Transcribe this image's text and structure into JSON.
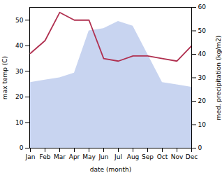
{
  "chart_data": {
    "type": "line",
    "xlabel": "date (month)",
    "ylabel": "max temp (C)",
    "y2label": "med. precipitation (kg/m2)",
    "categories": [
      "Jan",
      "Feb",
      "Mar",
      "Apr",
      "May",
      "Jun",
      "Jul",
      "Aug",
      "Sep",
      "Oct",
      "Nov",
      "Dec"
    ],
    "series": [
      {
        "type": "area",
        "axis": "y2",
        "color": "#c8d4f0",
        "values": [
          28,
          29,
          30,
          32,
          50,
          51,
          54,
          52,
          40,
          28,
          27,
          26
        ]
      },
      {
        "type": "line",
        "color": "#b03050",
        "values": [
          37,
          42,
          53,
          50,
          50,
          35,
          34,
          36,
          36,
          35,
          34,
          40
        ]
      }
    ],
    "ylim": [
      0,
      55
    ],
    "yticks": [
      0,
      10,
      20,
      30,
      40,
      50
    ],
    "y2lim": [
      0,
      60
    ],
    "y2ticks": [
      0,
      10,
      20,
      30,
      40,
      50,
      60
    ],
    "grid": false
  }
}
